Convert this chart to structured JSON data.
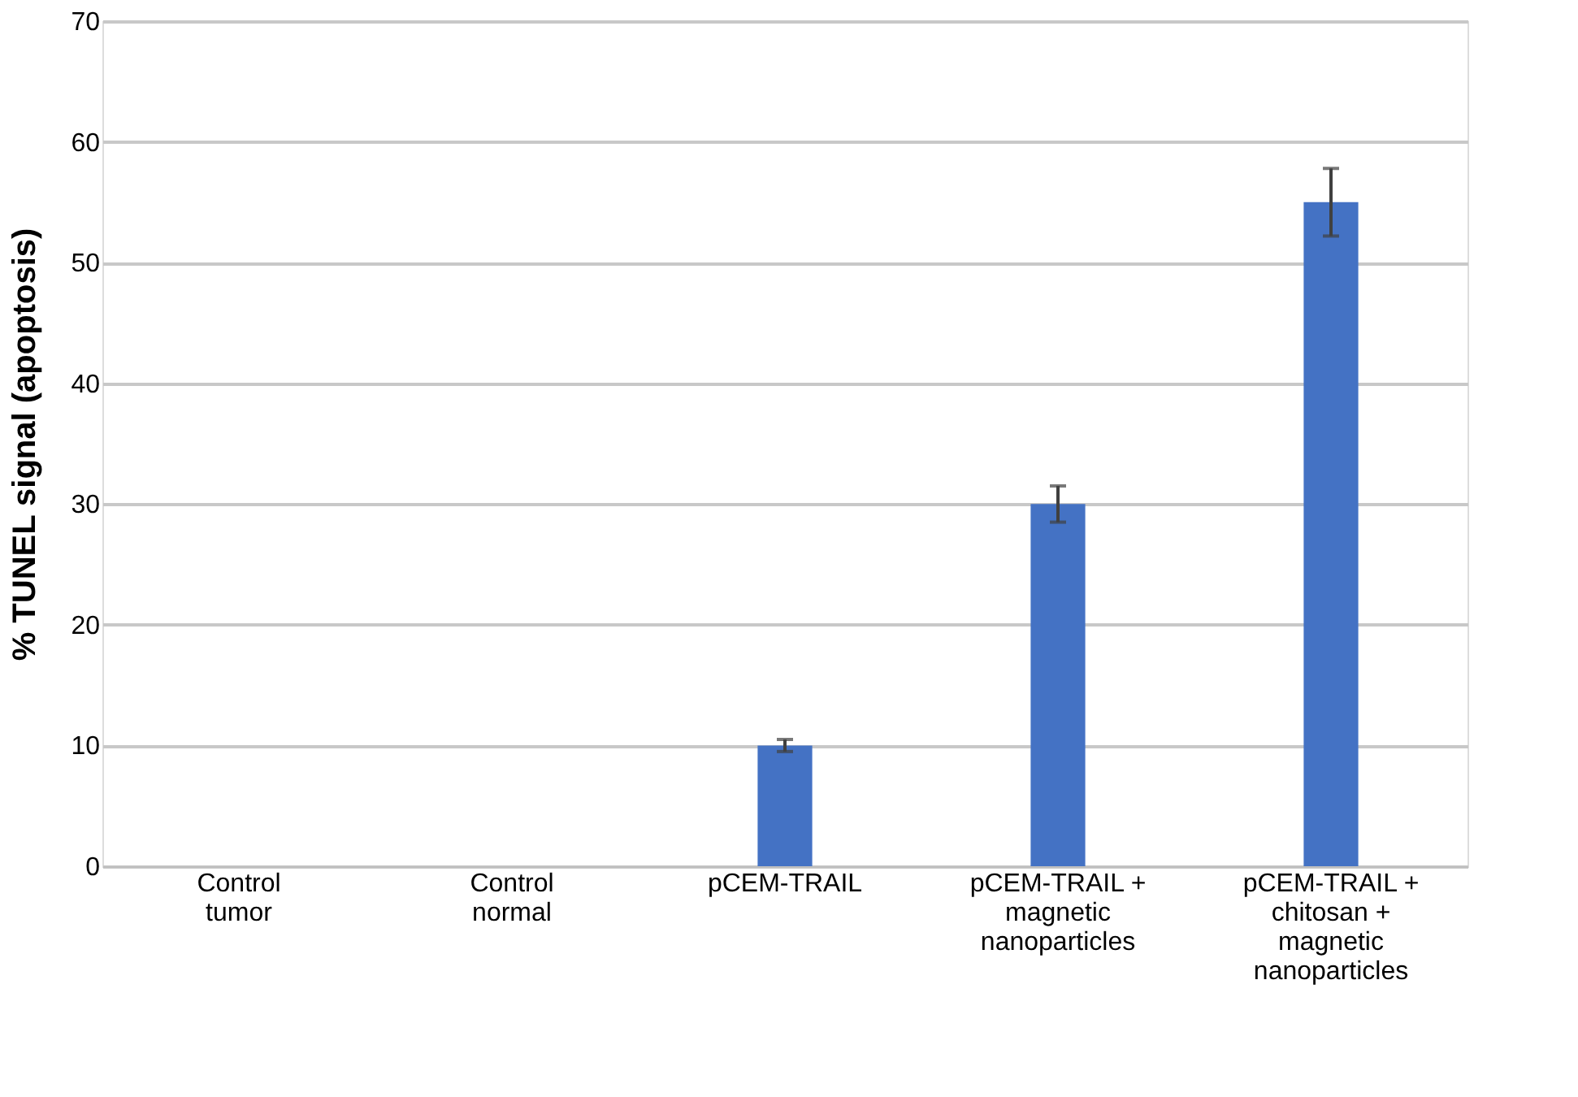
{
  "chart_data": {
    "type": "bar",
    "ylabel": "% TUNEL signal (apoptosis)",
    "categories": [
      "Control tumor",
      "Control normal",
      "pCEM-TRAIL",
      "pCEM-TRAIL + magnetic nanoparticles",
      "pCEM-TRAIL + chitosan + magnetic nanoparticles"
    ],
    "values": [
      0,
      0,
      10,
      30,
      55
    ],
    "errors": [
      null,
      null,
      0.5,
      1.5,
      2.8
    ],
    "color": "#4472c4",
    "ylim": [
      0,
      70
    ],
    "yticks": [
      0,
      10,
      20,
      30,
      40,
      50,
      60,
      70
    ],
    "grid": "y"
  }
}
